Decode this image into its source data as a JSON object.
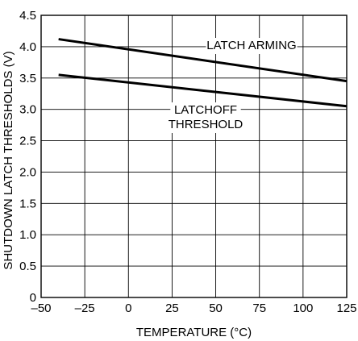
{
  "chart_data": {
    "type": "line",
    "xlabel": "TEMPERATURE (°C)",
    "ylabel": "SHUTDOWN LATCH THRESHOLDS (V)",
    "xlim": [
      -50,
      125
    ],
    "ylim": [
      0,
      4.5
    ],
    "x_ticks": [
      -50,
      -25,
      0,
      25,
      50,
      75,
      100,
      125
    ],
    "x_tick_labels": [
      "–50",
      "–25",
      "0",
      "25",
      "50",
      "75",
      "100",
      "125"
    ],
    "y_ticks": [
      0,
      0.5,
      1.0,
      1.5,
      2.0,
      2.5,
      3.0,
      3.5,
      4.0,
      4.5
    ],
    "y_tick_labels": [
      "0",
      "0.5",
      "1.0",
      "1.5",
      "2.0",
      "2.5",
      "3.0",
      "3.5",
      "4.0",
      "4.5"
    ],
    "grid": true,
    "series": [
      {
        "name": "LATCH ARMING",
        "color": "#000000",
        "x": [
          -40,
          125
        ],
        "y": [
          4.12,
          3.45
        ]
      },
      {
        "name": "LATCHOFF THRESHOLD",
        "color": "#000000",
        "x": [
          -40,
          125
        ],
        "y": [
          3.55,
          3.05
        ]
      }
    ],
    "annotations": [
      {
        "lines": [
          "LATCH ARMING"
        ],
        "series": 0
      },
      {
        "lines": [
          "LATCHOFF",
          "THRESHOLD"
        ],
        "series": 1
      }
    ]
  }
}
